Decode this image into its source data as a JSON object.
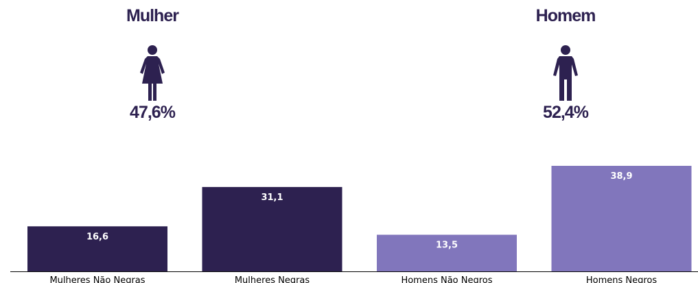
{
  "colors": {
    "dark": "#2d2150",
    "light": "#8176bc",
    "label_text": "#ffffff",
    "axis": "#000000"
  },
  "header": {
    "women": {
      "title": "Mulher",
      "percent": "47,6%",
      "icon": "woman-icon"
    },
    "men": {
      "title": "Homem",
      "percent": "52,4%",
      "icon": "man-icon"
    }
  },
  "chart_data": {
    "type": "bar",
    "categories": [
      "Mulheres Não Negras",
      "Mulheres Negras",
      "Homens Não Negros",
      "Homens Negros"
    ],
    "values": [
      16.6,
      31.1,
      13.5,
      38.9
    ],
    "value_labels": [
      "16,6",
      "31,1",
      "13,5",
      "38,9"
    ],
    "bar_colors": [
      "#2d2150",
      "#2d2150",
      "#8176bc",
      "#8176bc"
    ],
    "ylim": [
      0,
      38.9
    ],
    "grid": false,
    "title": "",
    "xlabel": "",
    "ylabel": ""
  }
}
